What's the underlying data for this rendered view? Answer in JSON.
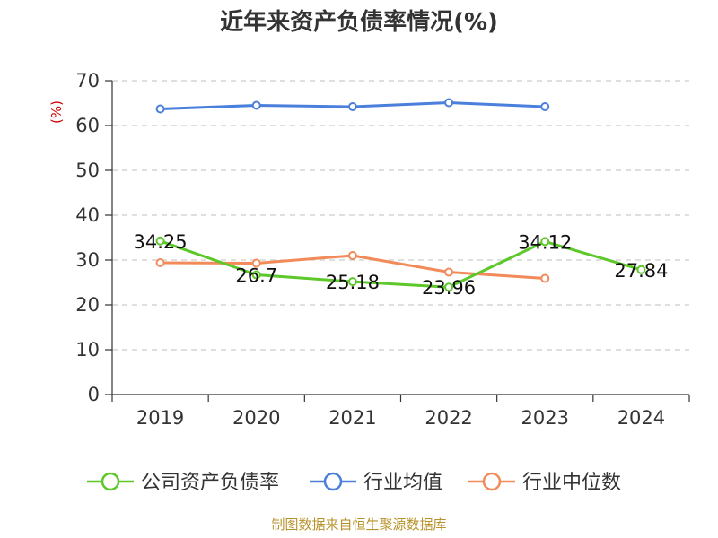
{
  "chart_data": {
    "type": "line",
    "title": "近年来资产负债率情况(%)",
    "ylabel": "(%)",
    "xlabel": "",
    "categories": [
      "2019",
      "2020",
      "2021",
      "2022",
      "2023",
      "2024"
    ],
    "ylim": [
      0,
      70
    ],
    "yticks": [
      "0",
      "10",
      "20",
      "30",
      "40",
      "50",
      "60",
      "70"
    ],
    "grid": true,
    "legend_position": "bottom",
    "series": [
      {
        "name": "公司资产负债率",
        "color": "#5cc82a",
        "values": [
          34.25,
          26.7,
          25.18,
          23.96,
          34.12,
          27.84
        ],
        "labels": [
          "34.25",
          "26.7",
          "25.18",
          "23.96",
          "34.12",
          "27.84"
        ],
        "show_labels": true
      },
      {
        "name": "行业均值",
        "color": "#4a7fdc",
        "values": [
          63.7,
          64.5,
          64.2,
          65.1,
          64.2,
          null
        ],
        "show_labels": false
      },
      {
        "name": "行业中位数",
        "color": "#f28a5a",
        "values": [
          29.4,
          29.3,
          31.0,
          27.3,
          25.9,
          null
        ],
        "show_labels": false
      }
    ]
  },
  "colors": {
    "ylabel": "#cc0000",
    "source": "#b8922a",
    "axis": "#333333",
    "grid": "#cccccc"
  },
  "source": "制图数据来自恒生聚源数据库"
}
